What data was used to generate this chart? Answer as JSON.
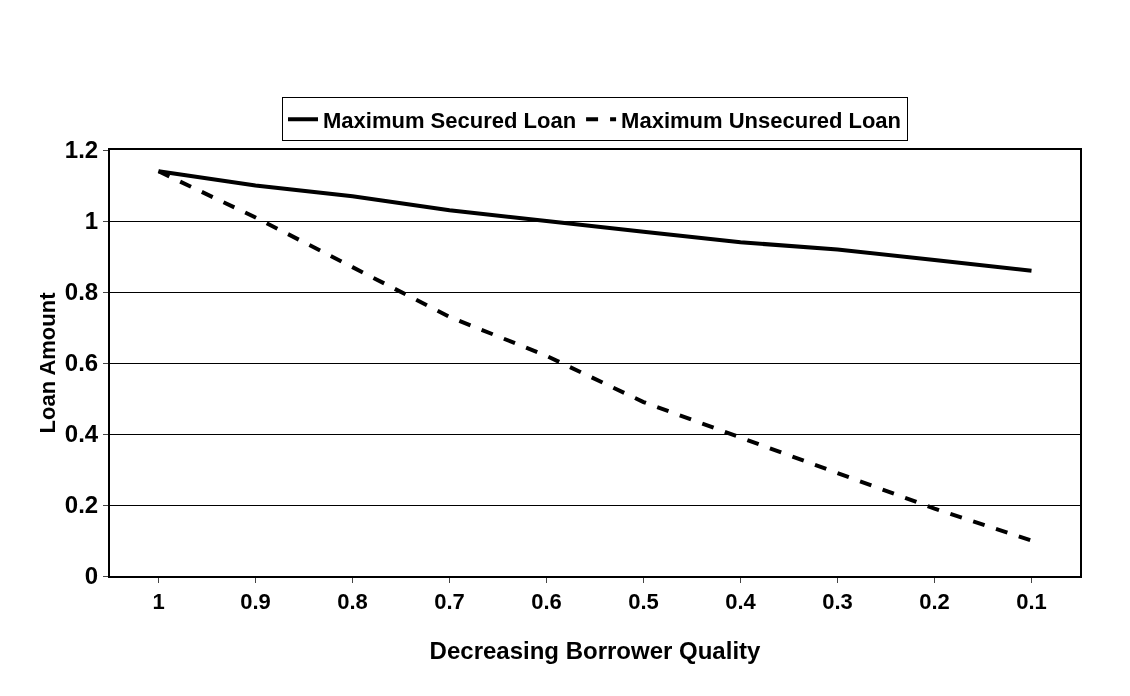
{
  "chart_data": {
    "type": "line",
    "xlabel": "Decreasing Borrower Quality",
    "ylabel": "Loan Amount",
    "categories": [
      "1",
      "0.9",
      "0.8",
      "0.7",
      "0.6",
      "0.5",
      "0.4",
      "0.3",
      "0.2",
      "0.1"
    ],
    "series": [
      {
        "name": "Maximum Secured Loan",
        "color": "#000000",
        "line_style": "solid",
        "values": [
          1.14,
          1.1,
          1.07,
          1.03,
          1.0,
          0.97,
          0.94,
          0.92,
          0.89,
          0.86
        ]
      },
      {
        "name": "Maximum Unsecured Loan",
        "color": "#000000",
        "line_style": "dashed",
        "values": [
          1.14,
          1.01,
          0.87,
          0.73,
          0.62,
          0.49,
          0.39,
          0.29,
          0.19,
          0.1
        ]
      }
    ],
    "ylim": [
      0,
      1.2
    ],
    "yticks": [
      0,
      0.2,
      0.4,
      0.6,
      0.8,
      1,
      1.2
    ],
    "grid": "y",
    "legend": "top",
    "marker": "none"
  }
}
